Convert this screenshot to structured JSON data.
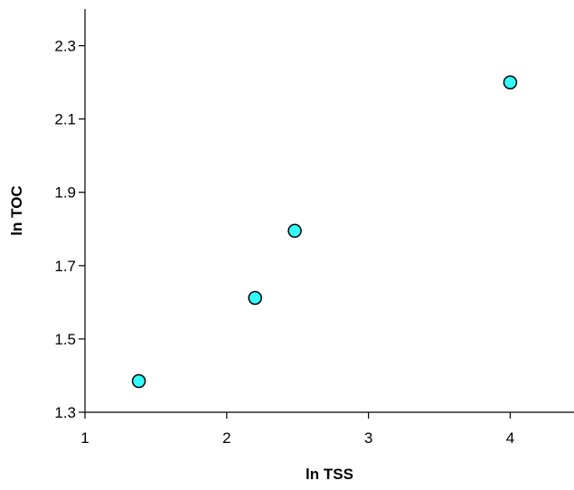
{
  "chart_data": {
    "type": "scatter",
    "title": "",
    "xlabel": "ln TSS",
    "ylabel": "ln TOC",
    "xlim": [
      1,
      4.45
    ],
    "ylim": [
      1.3,
      2.4
    ],
    "xticks": [
      1,
      2,
      3,
      4
    ],
    "yticks": [
      1.3,
      1.5,
      1.7,
      1.9,
      2.1,
      2.3
    ],
    "xtick_labels": [
      "1",
      "2",
      "3",
      "4"
    ],
    "ytick_labels": [
      "1.3",
      "1.5",
      "1.7",
      "1.9",
      "2.1",
      "2.3"
    ],
    "grid": false,
    "legend": "none",
    "marker_color": "#33FFFF",
    "marker_edge_color": "#000000",
    "series": [
      {
        "points": [
          {
            "x": 1.38,
            "y": 1.385
          },
          {
            "x": 2.2,
            "y": 1.612
          },
          {
            "x": 2.48,
            "y": 1.795
          },
          {
            "x": 4.0,
            "y": 2.2
          }
        ]
      }
    ]
  }
}
